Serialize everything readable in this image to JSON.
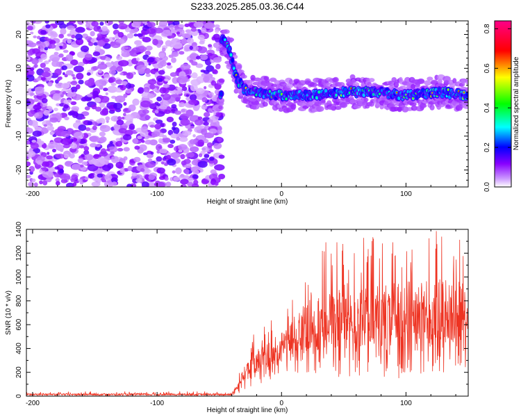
{
  "title": "S233.2025.285.03.36.C44",
  "chart_data": [
    {
      "type": "heatmap",
      "xlabel": "Height of straight line (km)",
      "ylabel": "Frequency (Hz)",
      "xlim": [
        -205,
        150
      ],
      "ylim": [
        -25,
        24
      ],
      "xticks": [
        -200,
        -100,
        0,
        100
      ],
      "yticks": [
        -20,
        -10,
        0,
        10,
        20
      ],
      "noise_region_x": [
        -205,
        -48
      ],
      "ridge": [
        {
          "x": -48,
          "y": 19
        },
        {
          "x": -44,
          "y": 17
        },
        {
          "x": -40,
          "y": 13
        },
        {
          "x": -36,
          "y": 7
        },
        {
          "x": -32,
          "y": 5
        },
        {
          "x": -28,
          "y": 3
        },
        {
          "x": -20,
          "y": 3
        },
        {
          "x": 0,
          "y": 2
        },
        {
          "x": 25,
          "y": 2
        },
        {
          "x": 50,
          "y": 3
        },
        {
          "x": 75,
          "y": 3
        },
        {
          "x": 100,
          "y": 2
        },
        {
          "x": 125,
          "y": 3
        },
        {
          "x": 150,
          "y": 2
        }
      ],
      "colorbar": {
        "label": "Normalized spectral amplitude",
        "range": [
          0.0,
          0.84
        ],
        "ticks": [
          0.0,
          0.2,
          0.4,
          0.6,
          0.8
        ],
        "tick_labels": [
          "0.0",
          "0.2",
          "0.4",
          "0.6",
          "0.8"
        ],
        "colors": [
          "#ffffff",
          "#8800ff",
          "#0000ff",
          "#00ffff",
          "#00ff00",
          "#ffff00",
          "#ff0000",
          "#ff0088"
        ]
      }
    },
    {
      "type": "line",
      "xlabel": "Height of straight line (km)",
      "ylabel": "SNR (10 * v/v)",
      "xlim": [
        -205,
        150
      ],
      "ylim": [
        0,
        1400
      ],
      "xticks": [
        -200,
        -100,
        0,
        100
      ],
      "yticks": [
        0,
        200,
        400,
        600,
        800,
        1000,
        1200,
        1400
      ],
      "series": [
        {
          "name": "SNR",
          "color": "#ee3322",
          "envelope": [
            {
              "x": -205,
              "baseline": 5,
              "peak": 40
            },
            {
              "x": -40,
              "baseline": 5,
              "peak": 40
            },
            {
              "x": -35,
              "baseline": 20,
              "peak": 150
            },
            {
              "x": -30,
              "baseline": 50,
              "peak": 450
            },
            {
              "x": -25,
              "baseline": 80,
              "peak": 520
            },
            {
              "x": -10,
              "baseline": 120,
              "peak": 620
            },
            {
              "x": 0,
              "baseline": 180,
              "peak": 720
            },
            {
              "x": 20,
              "baseline": 180,
              "peak": 1100
            },
            {
              "x": 40,
              "baseline": 150,
              "peak": 1350
            },
            {
              "x": 80,
              "baseline": 150,
              "peak": 1350
            },
            {
              "x": 130,
              "baseline": 150,
              "peak": 1420
            },
            {
              "x": 150,
              "baseline": 250,
              "peak": 1350
            }
          ]
        }
      ]
    }
  ]
}
